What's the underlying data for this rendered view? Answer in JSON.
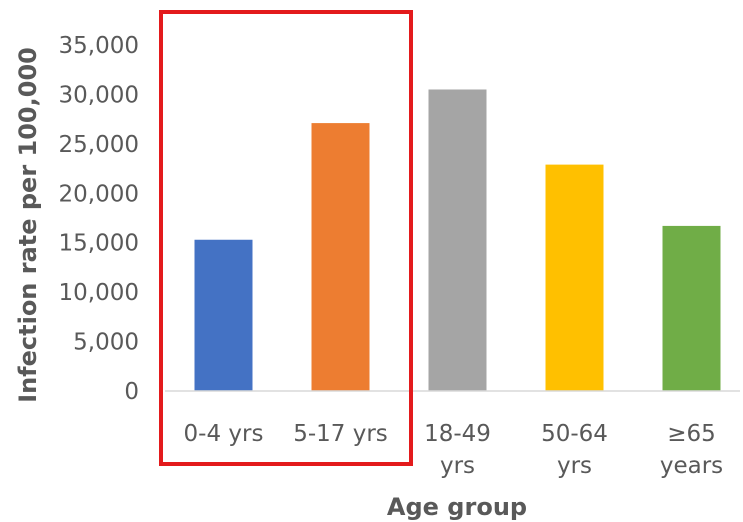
{
  "chart_data": {
    "type": "bar",
    "title": "",
    "xlabel": "Age group",
    "ylabel": "Infection rate per 100,000",
    "ylim": [
      0,
      35000
    ],
    "yticks": [
      {
        "value": 0,
        "label": "0"
      },
      {
        "value": 5000,
        "label": "5,000"
      },
      {
        "value": 10000,
        "label": "10,000"
      },
      {
        "value": 15000,
        "label": "15,000"
      },
      {
        "value": 20000,
        "label": "20,000"
      },
      {
        "value": 25000,
        "label": "25,000"
      },
      {
        "value": 30000,
        "label": "30,000"
      },
      {
        "value": 35000,
        "label": "35,000"
      }
    ],
    "categories": [
      {
        "label_lines": [
          "0-4 yrs"
        ]
      },
      {
        "label_lines": [
          "5-17 yrs"
        ]
      },
      {
        "label_lines": [
          "18-49",
          "yrs"
        ]
      },
      {
        "label_lines": [
          "50-64",
          "yrs"
        ]
      },
      {
        "label_lines": [
          "≥65",
          "years"
        ]
      }
    ],
    "values": [
      15300,
      27100,
      30500,
      22900,
      16700
    ],
    "colors": [
      "#4472C4",
      "#ED7D31",
      "#A5A5A5",
      "#FFC000",
      "#70AD47"
    ],
    "grid": false,
    "legend": "none",
    "highlight": {
      "categories": [
        "0-4 yrs",
        "5-17 yrs"
      ],
      "color": "#E31A1C"
    }
  }
}
